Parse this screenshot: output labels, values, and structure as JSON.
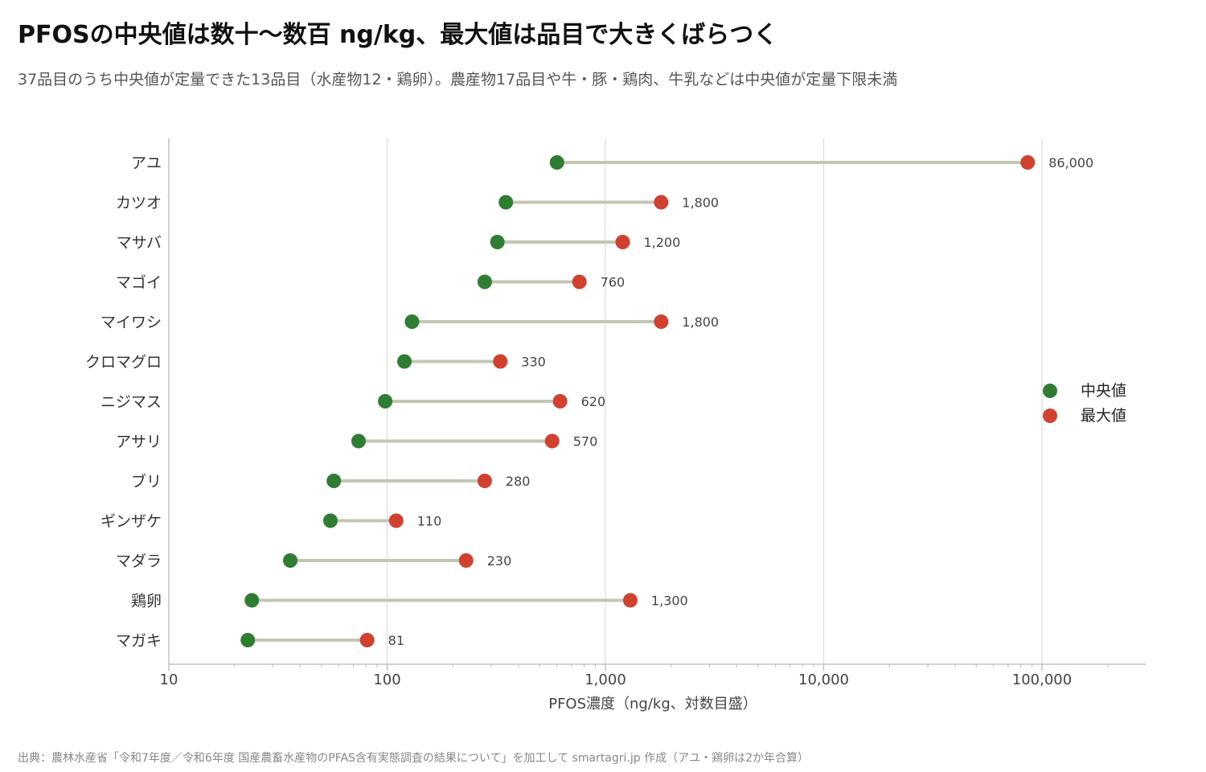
{
  "title": "PFOSの中央値は数十〜数百 ng/kg、最大値は品目で大きくばらつく",
  "subtitle": "37品目のうち中央値が定量できた13品目（水産物12・鶏卵）。農産物17品目や牛・豚・鶏肉、牛乳などは中央値が定量下限未満",
  "source": "出典：農林水産省「令和7年度／令和6年度 国産農畜水産物のPFAS含有実態調査の結果について」を加工して smartagri.jp 作成（アユ・鶏卵は2か年合算）",
  "colors": {
    "median": "#2e7d32",
    "max": "#d0412f",
    "connector": "#c4c6b4",
    "grid": "#dddddd",
    "axis": "#bbbbbb"
  },
  "chart_data": {
    "type": "dumbbell",
    "xscale": "log",
    "xlim": [
      10,
      300000
    ],
    "xticks": [
      10,
      100,
      1000,
      10000,
      100000
    ],
    "xtick_labels": [
      "10",
      "100",
      "1,000",
      "10,000",
      "100,000"
    ],
    "xlabel": "PFOS濃度（ng/kg、対数目盛）",
    "grid": "vertical major",
    "legend_position": "right",
    "categories": [
      "アユ",
      "カツオ",
      "マサバ",
      "マゴイ",
      "マイワシ",
      "クロマグロ",
      "ニジマス",
      "アサリ",
      "ブリ",
      "ギンザケ",
      "マダラ",
      "鶏卵",
      "マガキ"
    ],
    "series": [
      {
        "name": "中央値",
        "values": [
          600,
          350,
          320,
          280,
          130,
          120,
          98,
          74,
          57,
          55,
          36,
          24,
          23
        ]
      },
      {
        "name": "最大値",
        "values": [
          86000,
          1800,
          1200,
          760,
          1800,
          330,
          620,
          570,
          280,
          110,
          230,
          1300,
          81
        ]
      }
    ],
    "max_labels": [
      "86,000",
      "1,800",
      "1,200",
      "760",
      "1,800",
      "330",
      "620",
      "570",
      "280",
      "110",
      "230",
      "1,300",
      "81"
    ]
  }
}
